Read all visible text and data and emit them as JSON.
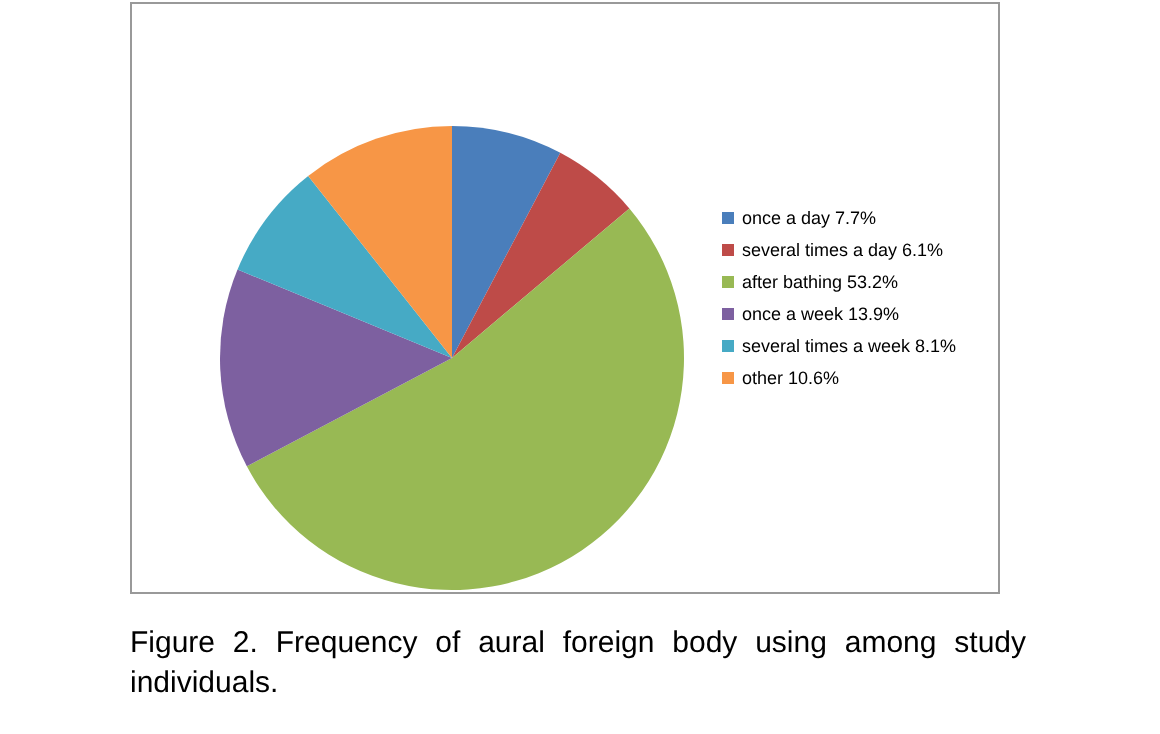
{
  "chart_data": {
    "type": "pie",
    "categories": [
      "once a day 7.7%",
      "several times a day 6.1%",
      "after bathing 53.2%",
      "once a week 13.9%",
      "several times a week 8.1%",
      "other 10.6%"
    ],
    "values": [
      7.7,
      6.1,
      53.2,
      13.9,
      8.1,
      10.6
    ],
    "colors": [
      "#4a7ebb",
      "#be4b48",
      "#98b954",
      "#7d60a0",
      "#46aac5",
      "#f79646"
    ],
    "legend": "right",
    "annotations": [
      "Figure 2. Frequency of aural foreign body using among study individuals."
    ]
  }
}
